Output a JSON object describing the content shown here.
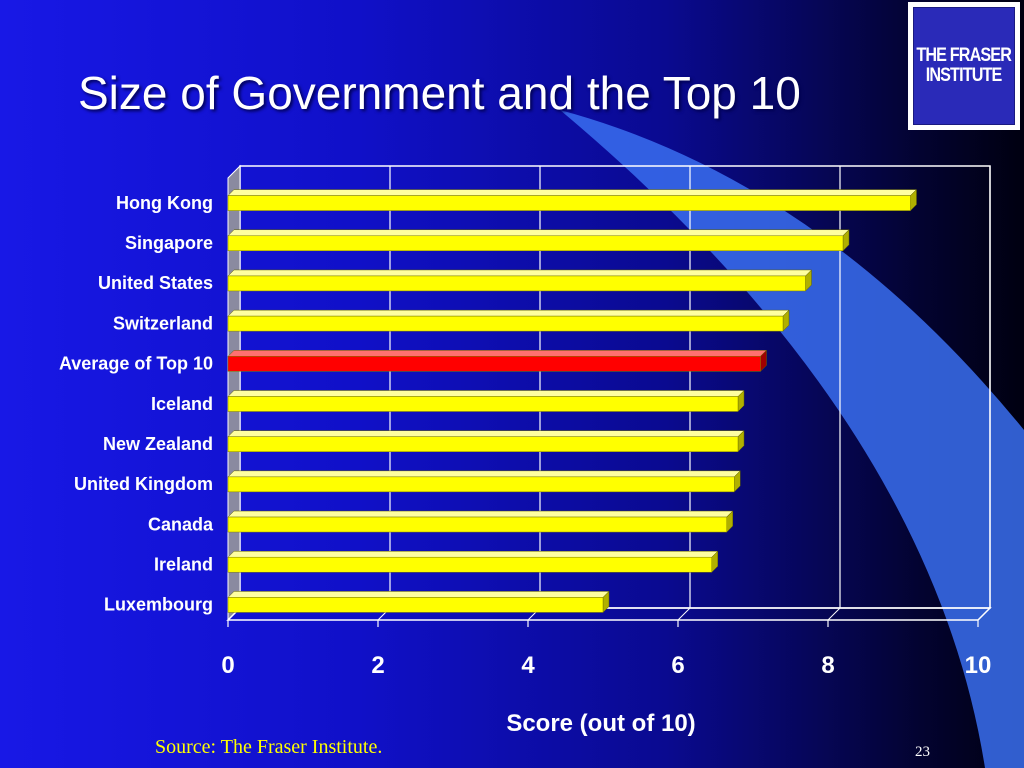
{
  "slide": {
    "title": "Size of Government and the Top 10",
    "source": "Source: The Fraser Institute.",
    "slide_number": "23"
  },
  "logo": {
    "line1": "THE FRASER",
    "line2": "INSTITUTE"
  },
  "colors": {
    "bar": "#ffff00",
    "highlight_bar": "#ff0000",
    "background": "#1010c8",
    "arc": "#3a6ef0"
  },
  "chart_data": {
    "type": "bar",
    "orientation": "horizontal",
    "title": "",
    "xlabel": "Score (out of 10)",
    "ylabel": "",
    "xlim": [
      0,
      10
    ],
    "xticks": [
      "0",
      "2",
      "4",
      "6",
      "8",
      "10"
    ],
    "grid": true,
    "legend": "none",
    "categories": [
      "Hong Kong",
      "Singapore",
      "United States",
      "Switzerland",
      "Average of Top 10",
      "Iceland",
      "New Zealand",
      "United Kingdom",
      "Canada",
      "Ireland",
      "Luxembourg"
    ],
    "values": [
      9.1,
      8.2,
      7.7,
      7.4,
      7.1,
      6.8,
      6.8,
      6.75,
      6.65,
      6.45,
      5.0
    ],
    "highlight_category": "Average of Top 10"
  }
}
